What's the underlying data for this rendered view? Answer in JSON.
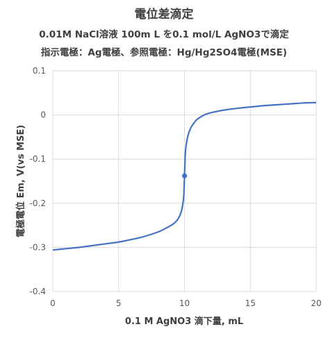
{
  "chart_data": {
    "type": "line",
    "title": "電位差滴定",
    "subtitle": "0.01M NaCl溶液 100m L を0.1 mol/L AgNO3で滴定",
    "subtitle2": "指示電極：Ag電極、参照電極：Hg/Hg2SO4電極(MSE)",
    "xlabel": "0.1 M AgNO3 滴下量, mL",
    "ylabel": "電極電位 Em, V(vs MSE)",
    "xlim": [
      0,
      20
    ],
    "ylim": [
      -0.4,
      0.1
    ],
    "x_ticks": [
      "0",
      "5",
      "10",
      "15",
      "20"
    ],
    "y_ticks": [
      "0.1",
      "0",
      "-0.1",
      "-0.2",
      "-0.3",
      "-0.4"
    ],
    "grid": true,
    "legend": "none",
    "line_color": "#4472C4",
    "series": [
      {
        "x": [
          0,
          1,
          2,
          3,
          4,
          5,
          6,
          7,
          8,
          8.5,
          9,
          9.3,
          9.5,
          9.7,
          9.8,
          9.9,
          9.95,
          10,
          10.05,
          10.1,
          10.2,
          10.3,
          10.5,
          10.8,
          11,
          11.5,
          12,
          13,
          14,
          15,
          16,
          17,
          18,
          19,
          20
        ],
        "y": [
          -0.306,
          -0.303,
          -0.3,
          -0.296,
          -0.292,
          -0.288,
          -0.282,
          -0.275,
          -0.265,
          -0.258,
          -0.25,
          -0.243,
          -0.236,
          -0.224,
          -0.214,
          -0.196,
          -0.18,
          -0.138,
          -0.095,
          -0.075,
          -0.055,
          -0.043,
          -0.028,
          -0.015,
          -0.009,
          0.0,
          0.005,
          0.011,
          0.015,
          0.018,
          0.021,
          0.023,
          0.025,
          0.027,
          0.028
        ]
      }
    ],
    "marker": {
      "x": 10,
      "y": -0.138
    }
  }
}
